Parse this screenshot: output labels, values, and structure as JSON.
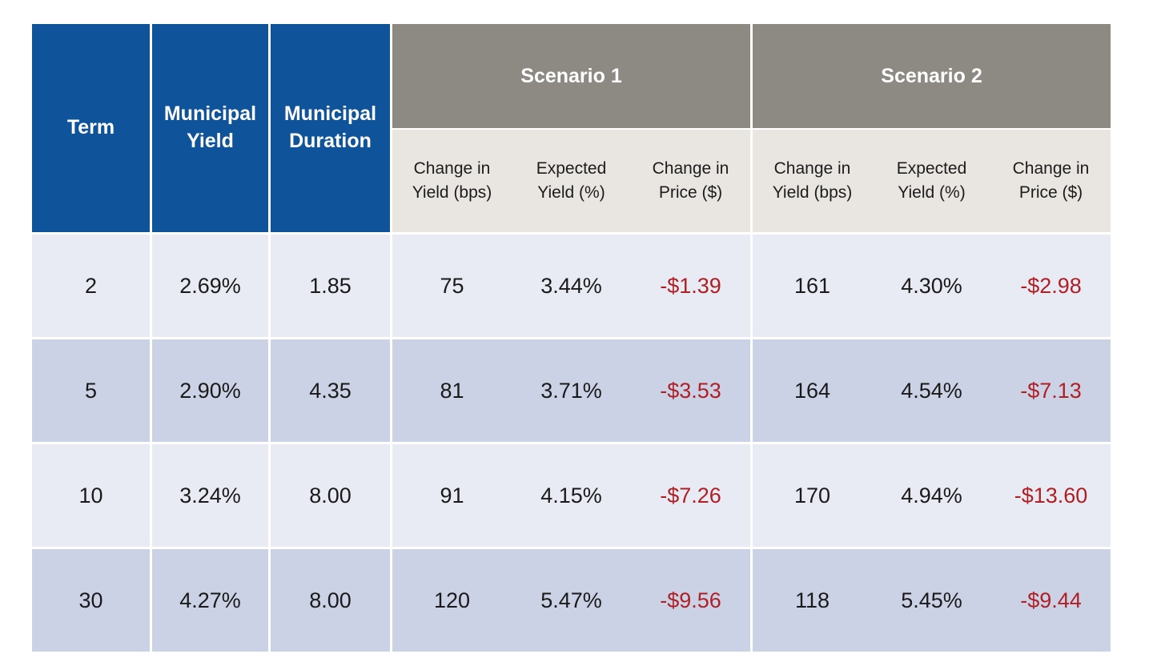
{
  "colors": {
    "header_blue": "#0f549b",
    "scenario_gray": "#8d8a84",
    "subheader_beige": "#e9e6e1",
    "row_light": "#e8ebf4",
    "row_dark": "#ccd2e6",
    "negative_red": "#b01f24",
    "text_dark": "#1a1a1a",
    "header_text": "#ffffff"
  },
  "table": {
    "fixed_columns": [
      {
        "label": "Term"
      },
      {
        "label": "Municipal\nYield"
      },
      {
        "label": "Municipal\nDuration"
      }
    ],
    "scenario_groups": [
      {
        "label": "Scenario 1",
        "sub_columns": [
          "Change in\nYield (bps)",
          "Expected\nYield (%)",
          "Change in\nPrice ($)"
        ]
      },
      {
        "label": "Scenario 2",
        "sub_columns": [
          "Change in\nYield (bps)",
          "Expected\nYield (%)",
          "Change in\nPrice ($)"
        ]
      }
    ],
    "rows": [
      {
        "term": "2",
        "municipal_yield": "2.69%",
        "municipal_duration": "1.85",
        "s1": {
          "change_in_yield_bps": "75",
          "expected_yield": "3.44%",
          "change_in_price": "-$1.39"
        },
        "s2": {
          "change_in_yield_bps": "161",
          "expected_yield": "4.30%",
          "change_in_price": "-$2.98"
        }
      },
      {
        "term": "5",
        "municipal_yield": "2.90%",
        "municipal_duration": "4.35",
        "s1": {
          "change_in_yield_bps": "81",
          "expected_yield": "3.71%",
          "change_in_price": "-$3.53"
        },
        "s2": {
          "change_in_yield_bps": "164",
          "expected_yield": "4.54%",
          "change_in_price": "-$7.13"
        }
      },
      {
        "term": "10",
        "municipal_yield": "3.24%",
        "municipal_duration": "8.00",
        "s1": {
          "change_in_yield_bps": "91",
          "expected_yield": "4.15%",
          "change_in_price": "-$7.26"
        },
        "s2": {
          "change_in_yield_bps": "170",
          "expected_yield": "4.94%",
          "change_in_price": "-$13.60"
        }
      },
      {
        "term": "30",
        "municipal_yield": "4.27%",
        "municipal_duration": "8.00",
        "s1": {
          "change_in_yield_bps": "120",
          "expected_yield": "5.47%",
          "change_in_price": "-$9.56"
        },
        "s2": {
          "change_in_yield_bps": "118",
          "expected_yield": "5.45%",
          "change_in_price": "-$9.44"
        }
      }
    ]
  },
  "chart_data": {
    "type": "table",
    "title": "",
    "columns": [
      "Term",
      "Municipal Yield",
      "Municipal Duration",
      "Scenario 1 - Change in Yield (bps)",
      "Scenario 1 - Expected Yield (%)",
      "Scenario 1 - Change in Price ($)",
      "Scenario 2 - Change in Yield (bps)",
      "Scenario 2 - Expected Yield (%)",
      "Scenario 2 - Change in Price ($)"
    ],
    "rows": [
      [
        "2",
        "2.69%",
        "1.85",
        "75",
        "3.44%",
        "-$1.39",
        "161",
        "4.30%",
        "-$2.98"
      ],
      [
        "5",
        "2.90%",
        "4.35",
        "81",
        "3.71%",
        "-$3.53",
        "164",
        "4.54%",
        "-$7.13"
      ],
      [
        "10",
        "3.24%",
        "8.00",
        "91",
        "4.15%",
        "-$7.26",
        "170",
        "4.94%",
        "-$13.60"
      ],
      [
        "30",
        "4.27%",
        "8.00",
        "120",
        "5.47%",
        "-$9.56",
        "118",
        "5.45%",
        "-$9.44"
      ]
    ]
  }
}
